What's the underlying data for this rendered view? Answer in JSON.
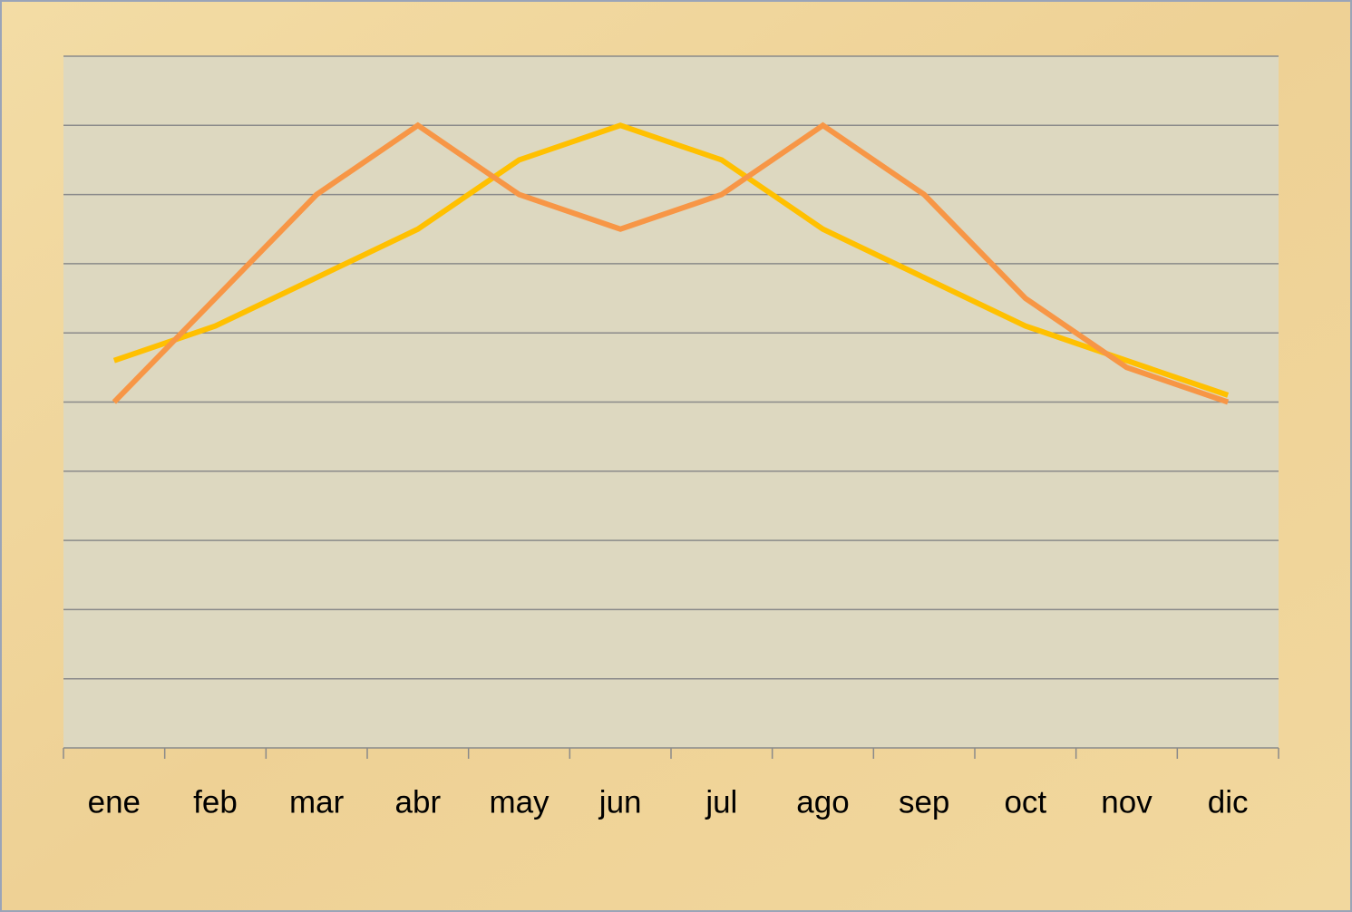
{
  "chart_data": {
    "type": "line",
    "categories": [
      "ene",
      "feb",
      "mar",
      "abr",
      "may",
      "jun",
      "jul",
      "ago",
      "sep",
      "oct",
      "nov",
      "dic"
    ],
    "series": [
      {
        "color": "#ffc000",
        "values": [
          5.6,
          6.1,
          6.8,
          7.5,
          8.5,
          9,
          8.5,
          7.5,
          6.8,
          6.1,
          5.6,
          5.1
        ]
      },
      {
        "color": "#f79646",
        "values": [
          5,
          6.5,
          8,
          9,
          8,
          7.5,
          8,
          9,
          8,
          6.5,
          5.5,
          5
        ]
      }
    ],
    "ylim": [
      0,
      10
    ],
    "yticks": [
      0,
      1,
      2,
      3,
      4,
      5,
      6,
      7,
      8,
      9,
      10
    ],
    "grid": true
  }
}
